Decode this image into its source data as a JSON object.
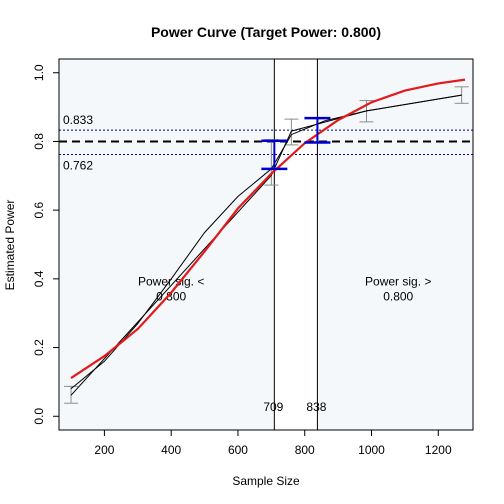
{
  "chart_data": {
    "type": "line",
    "title": "Power Curve (Target Power: 0.800)",
    "xlabel": "Sample Size",
    "ylabel": "Estimated Power",
    "xlim": [
      64,
      1304
    ],
    "ylim": [
      -0.04,
      1.04
    ],
    "x_ticks": [
      200,
      400,
      600,
      800,
      1000,
      1200
    ],
    "x_tick_labels": [
      "200",
      "400",
      "600",
      "800",
      "1000",
      "1200"
    ],
    "y_ticks": [
      0.0,
      0.2,
      0.4,
      0.6,
      0.8,
      1.0
    ],
    "y_tick_labels": [
      "0.0",
      "0.2",
      "0.4",
      "0.6",
      "0.8",
      "1.0"
    ],
    "target_power": 0.8,
    "target_line_color": "#000000",
    "ci_bounds": {
      "lower": 0.762,
      "upper": 0.833,
      "lower_label": "0.762",
      "upper_label": "0.833",
      "color": "#00008b"
    },
    "vertical_lines": [
      {
        "x": 709,
        "label": "709"
      },
      {
        "x": 838,
        "label": "838"
      }
    ],
    "regions": [
      {
        "x_from": 64,
        "x_to": 709,
        "lines": [
          "Power sig. <",
          "0.800"
        ],
        "label_x": 400,
        "label_y": 0.38
      },
      {
        "x_from": 838,
        "x_to": 1304,
        "lines": [
          "Power sig. >",
          "0.800"
        ],
        "label_x": 1080,
        "label_y": 0.38
      }
    ],
    "region_fill": "#f4f8fa",
    "series": [
      {
        "color": "#000000",
        "points": [
          {
            "x": 100,
            "y": 0.061,
            "lo": 0.038,
            "hi": 0.087
          },
          {
            "x": 700,
            "y": 0.701,
            "lo": 0.673,
            "hi": 0.805
          },
          {
            "x": 760,
            "y": 0.83,
            "lo": 0.79,
            "hi": 0.865
          },
          {
            "x": 985,
            "y": 0.889,
            "lo": 0.857,
            "hi": 0.919
          },
          {
            "x": 1270,
            "y": 0.935,
            "lo": 0.911,
            "hi": 0.959
          }
        ]
      },
      {
        "color": "#000000",
        "points": [
          {
            "x": 100,
            "y": 0.08
          },
          {
            "x": 200,
            "y": 0.16
          },
          {
            "x": 300,
            "y": 0.27
          },
          {
            "x": 400,
            "y": 0.4
          },
          {
            "x": 500,
            "y": 0.535
          },
          {
            "x": 600,
            "y": 0.64
          },
          {
            "x": 700,
            "y": 0.72
          },
          {
            "x": 760,
            "y": 0.82
          },
          {
            "x": 860,
            "y": 0.86
          },
          {
            "x": 985,
            "y": 0.889
          },
          {
            "x": 1270,
            "y": 0.935
          }
        ]
      },
      {
        "color": "#e31a1c",
        "points": [
          {
            "x": 100,
            "y": 0.111
          },
          {
            "x": 200,
            "y": 0.175
          },
          {
            "x": 300,
            "y": 0.254
          },
          {
            "x": 400,
            "y": 0.36
          },
          {
            "x": 500,
            "y": 0.48
          },
          {
            "x": 600,
            "y": 0.605
          },
          {
            "x": 700,
            "y": 0.706
          },
          {
            "x": 800,
            "y": 0.795
          },
          {
            "x": 900,
            "y": 0.862
          },
          {
            "x": 1000,
            "y": 0.914
          },
          {
            "x": 1100,
            "y": 0.948
          },
          {
            "x": 1200,
            "y": 0.969
          },
          {
            "x": 1280,
            "y": 0.98
          }
        ]
      }
    ],
    "target_points": [
      {
        "x": 709,
        "lo": 0.72,
        "hi": 0.802,
        "color": "#0000cd"
      },
      {
        "x": 838,
        "lo": 0.797,
        "hi": 0.868,
        "color": "#0000cd"
      }
    ]
  }
}
